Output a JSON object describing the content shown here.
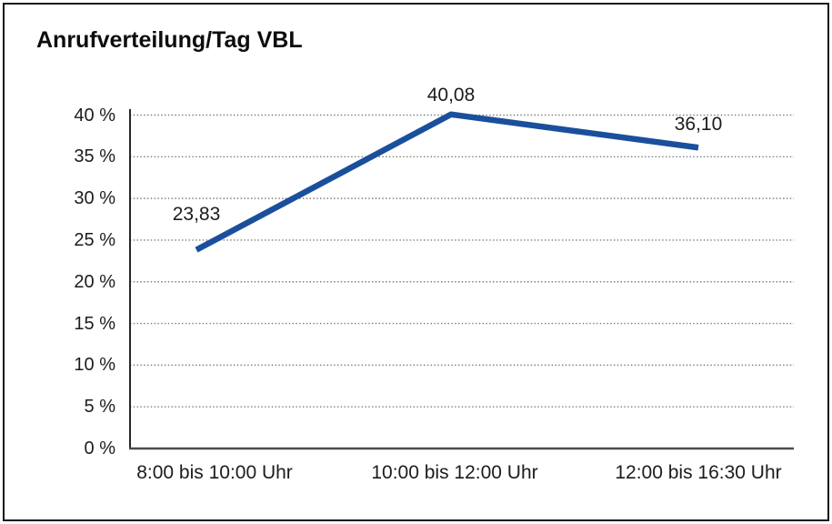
{
  "window": {
    "background": "#ffffff",
    "border_color": "#161616"
  },
  "chart_data": {
    "type": "line",
    "title": "Anrufverteilung/Tag VBL",
    "categories": [
      "8:00 bis 10:00 Uhr",
      "10:00 bis 12:00 Uhr",
      "12:00 bis 16:30 Uhr"
    ],
    "values": [
      23.83,
      40.08,
      36.1
    ],
    "data_labels": [
      "23,83",
      "40,08",
      "36,10"
    ],
    "ylim": [
      0,
      40
    ],
    "ytick_step": 5,
    "ytick_labels": [
      "0 %",
      "5 %",
      "10 %",
      "15 %",
      "20 %",
      "25 %",
      "30 %",
      "35 %",
      "40 %"
    ],
    "xlabel": "",
    "ylabel": "",
    "legend": "none",
    "grid": "horizontal-dotted",
    "line_color": "#1a4f9c",
    "axis_color": "#4d4d4d",
    "yaxis_color": "#262626",
    "grid_color": "#7b7b7b",
    "text_color": "#1c1c1c"
  }
}
